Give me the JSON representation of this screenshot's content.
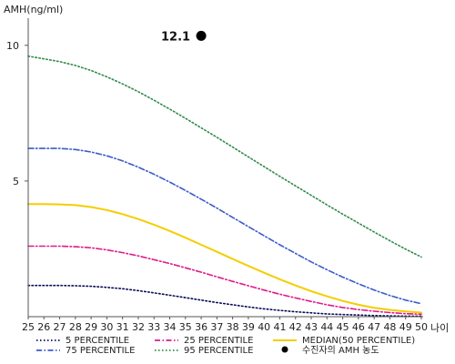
{
  "chart_data": {
    "type": "line",
    "title": "",
    "ylabel": "AMH(ng/ml)",
    "xlabel": "나이",
    "x": [
      25,
      26,
      27,
      28,
      29,
      30,
      31,
      32,
      33,
      34,
      35,
      36,
      37,
      38,
      39,
      40,
      41,
      42,
      43,
      44,
      45,
      46,
      47,
      48,
      49,
      50
    ],
    "xlim": [
      25,
      50
    ],
    "ylim": [
      0,
      11
    ],
    "yticks": [
      5,
      10
    ],
    "grid": false,
    "legend_position": "bottom",
    "series": [
      {
        "name": "5 PERCENTILE",
        "color": "#0a0a5a",
        "dash": "dotted",
        "values": [
          1.15,
          1.15,
          1.15,
          1.14,
          1.12,
          1.08,
          1.03,
          0.96,
          0.88,
          0.79,
          0.7,
          0.61,
          0.52,
          0.44,
          0.36,
          0.29,
          0.23,
          0.18,
          0.14,
          0.1,
          0.08,
          0.06,
          0.04,
          0.03,
          0.02,
          0.02
        ]
      },
      {
        "name": "25 PERCENTILE",
        "color": "#e0198a",
        "dash": "dashdot",
        "values": [
          2.6,
          2.6,
          2.6,
          2.58,
          2.54,
          2.46,
          2.36,
          2.24,
          2.1,
          1.96,
          1.8,
          1.64,
          1.47,
          1.3,
          1.14,
          0.98,
          0.83,
          0.69,
          0.56,
          0.44,
          0.34,
          0.26,
          0.2,
          0.15,
          0.11,
          0.09
        ]
      },
      {
        "name": "MEDIAN(50 PERCENTILE)",
        "color": "#f5cd00",
        "dash": "solid",
        "values": [
          4.15,
          4.15,
          4.14,
          4.11,
          4.04,
          3.93,
          3.78,
          3.6,
          3.39,
          3.16,
          2.91,
          2.65,
          2.39,
          2.13,
          1.87,
          1.62,
          1.38,
          1.15,
          0.94,
          0.75,
          0.58,
          0.44,
          0.33,
          0.25,
          0.19,
          0.15
        ]
      },
      {
        "name": "75 PERCENTILE",
        "color": "#3b5cc8",
        "dash": "dashdot",
        "values": [
          6.2,
          6.2,
          6.2,
          6.16,
          6.07,
          5.93,
          5.74,
          5.51,
          5.25,
          4.96,
          4.65,
          4.33,
          4.0,
          3.66,
          3.32,
          2.98,
          2.65,
          2.33,
          2.02,
          1.73,
          1.46,
          1.21,
          0.98,
          0.78,
          0.61,
          0.48
        ]
      },
      {
        "name": "95 PERCENTILE",
        "color": "#2e8b4a",
        "dash": "dotted",
        "values": [
          9.6,
          9.5,
          9.4,
          9.26,
          9.07,
          8.84,
          8.58,
          8.29,
          7.98,
          7.65,
          7.31,
          6.96,
          6.61,
          6.25,
          5.89,
          5.53,
          5.17,
          4.82,
          4.47,
          4.12,
          3.78,
          3.45,
          3.12,
          2.8,
          2.49,
          2.2
        ]
      }
    ],
    "points": [
      {
        "name": "수진자의 AMH 농도",
        "x": 36,
        "y": 10.35,
        "label": "12.1",
        "color": "#000000"
      }
    ]
  }
}
